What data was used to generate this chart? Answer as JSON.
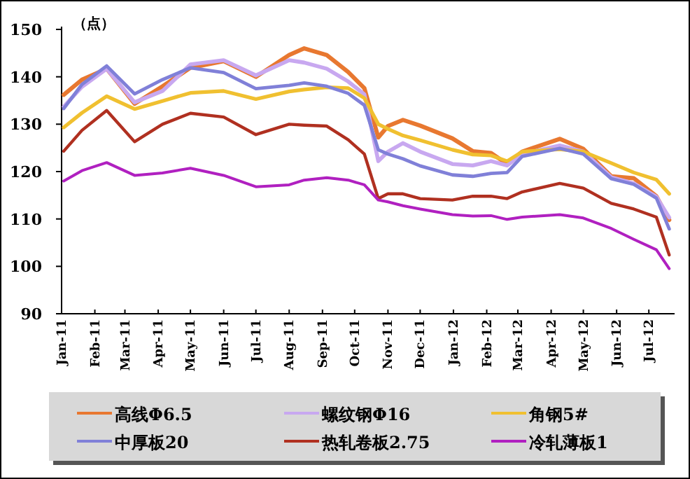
{
  "chart_data": {
    "type": "line",
    "ylabel": "（点）",
    "x": [
      "2011-01-03",
      "2011-01-20",
      "2011-02-12",
      "2011-03-10",
      "2011-04-05",
      "2011-05-01",
      "2011-06-01",
      "2011-07-01",
      "2011-08-01",
      "2011-08-15",
      "2011-09-05",
      "2011-09-25",
      "2011-10-10",
      "2011-10-23",
      "2011-11-01",
      "2011-11-15",
      "2011-12-01",
      "2011-12-31",
      "2012-01-19",
      "2012-02-05",
      "2012-02-20",
      "2012-03-05",
      "2012-04-09",
      "2012-05-01",
      "2012-05-27",
      "2012-06-17",
      "2012-07-08",
      "2012-07-20"
    ],
    "xlim": [
      "2011-01-01",
      "2012-07-25"
    ],
    "xticks": [
      {
        "value": "2011-01-01",
        "label": "Jan-11"
      },
      {
        "value": "2011-02-01",
        "label": "Feb-11"
      },
      {
        "value": "2011-03-01",
        "label": "Mar-11"
      },
      {
        "value": "2011-04-01",
        "label": "Apr-11"
      },
      {
        "value": "2011-05-01",
        "label": "May-11"
      },
      {
        "value": "2011-06-01",
        "label": "Jun-11"
      },
      {
        "value": "2011-07-01",
        "label": "Jul-11"
      },
      {
        "value": "2011-08-01",
        "label": "Aug-11"
      },
      {
        "value": "2011-09-01",
        "label": "Sep-11"
      },
      {
        "value": "2011-10-01",
        "label": "Oct-11"
      },
      {
        "value": "2011-11-01",
        "label": "Nov-11"
      },
      {
        "value": "2011-12-01",
        "label": "Dec-11"
      },
      {
        "value": "2012-01-01",
        "label": "Jan-12"
      },
      {
        "value": "2012-02-01",
        "label": "Feb-12"
      },
      {
        "value": "2012-03-01",
        "label": "Mar-12"
      },
      {
        "value": "2012-04-01",
        "label": "Apr-12"
      },
      {
        "value": "2012-05-01",
        "label": "May-12"
      },
      {
        "value": "2012-06-01",
        "label": "Jun-12"
      },
      {
        "value": "2012-07-01",
        "label": "Jul-12"
      }
    ],
    "ylim": [
      90,
      150
    ],
    "yticks": [
      90,
      100,
      110,
      120,
      130,
      140,
      150
    ],
    "legend": "bottom",
    "series": [
      {
        "name": "高线Φ6.5",
        "color": "#e87830",
        "values": [
          136.2,
          139.4,
          141.7,
          134.3,
          138,
          141.9,
          143.3,
          140,
          144.6,
          146,
          144.6,
          141,
          137.6,
          127.2,
          129.6,
          130.9,
          129.7,
          127,
          124.3,
          123.9,
          121.6,
          124.2,
          126.9,
          124.8,
          119,
          118.6,
          114.8,
          109.8
        ]
      },
      {
        "name": "螺纹钢Φ16",
        "color": "#c8a8f0",
        "values": [
          133.7,
          137.9,
          141.7,
          134.6,
          137,
          142.6,
          143.5,
          140.3,
          143.5,
          143,
          141.7,
          139,
          136.3,
          122.2,
          124.2,
          126,
          124.2,
          121.6,
          121.3,
          122.2,
          121.3,
          123.7,
          125.5,
          124.2,
          118.8,
          117.5,
          114.7,
          110.3
        ]
      },
      {
        "name": "角钢5#",
        "color": "#f0c030",
        "values": [
          129.3,
          132.4,
          135.9,
          133.2,
          134.9,
          136.6,
          137,
          135.3,
          136.9,
          137.3,
          137.8,
          137.6,
          135.5,
          130,
          129,
          127.6,
          126.6,
          124.6,
          123.6,
          123.4,
          122.2,
          124.2,
          124.7,
          124.2,
          121.8,
          119.8,
          118.3,
          115.3
        ]
      },
      {
        "name": "中厚板20",
        "color": "#8080d8",
        "values": [
          133.3,
          138.4,
          142.3,
          136.4,
          139.4,
          141.9,
          140.9,
          137.5,
          138.2,
          138.7,
          138,
          136.5,
          134,
          124.6,
          123.7,
          122.7,
          121.2,
          119.3,
          119,
          119.6,
          119.8,
          123.2,
          124.9,
          123.7,
          118.5,
          117.3,
          114.4,
          107.9
        ]
      },
      {
        "name": "热轧卷板2.75",
        "color": "#b03020",
        "values": [
          124.3,
          128.7,
          132.9,
          126.3,
          130,
          132.3,
          131.5,
          127.8,
          130,
          129.8,
          129.6,
          126.7,
          123.7,
          114.3,
          115.3,
          115.3,
          114.3,
          114,
          114.8,
          114.8,
          114.3,
          115.7,
          117.5,
          116.5,
          113.3,
          112.1,
          110.4,
          102.4
        ]
      },
      {
        "name": "冷轧薄板1",
        "color": "#b020c0",
        "values": [
          118,
          120.2,
          121.9,
          119.2,
          119.7,
          120.7,
          119.2,
          116.8,
          117.2,
          118.2,
          118.7,
          118.2,
          117.2,
          114,
          113.6,
          112.8,
          112.1,
          110.9,
          110.6,
          110.7,
          109.9,
          110.4,
          110.9,
          110.2,
          108,
          105.7,
          103.5,
          99.5
        ]
      }
    ]
  }
}
